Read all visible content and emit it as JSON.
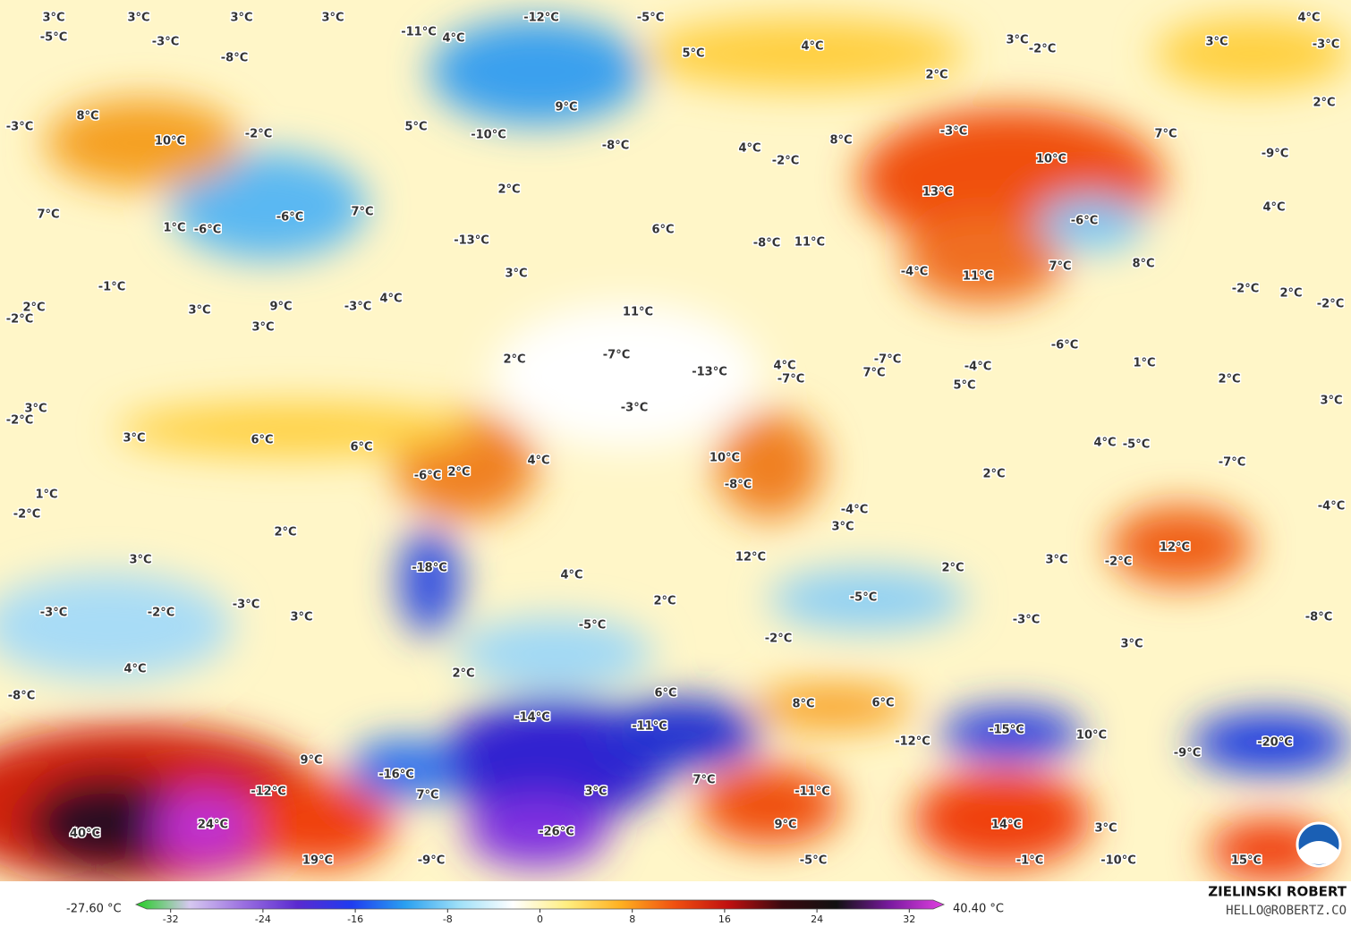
{
  "map": {
    "labels": [
      "3°C",
      "3°C",
      "3°C",
      "3°C",
      "-12°C",
      "-5°C",
      "4°C",
      "-5°C",
      "-3°C",
      "-11°C",
      "4°C",
      "3°C",
      "-2°C",
      "3°C",
      "-3°C",
      "-8°C",
      "5°C",
      "4°C",
      "2°C",
      "2°C",
      "8°C",
      "-3°C",
      "5°C",
      "9°C",
      "-10°C",
      "-8°C",
      "-2°C",
      "10°C",
      "4°C",
      "8°C",
      "-3°C",
      "7°C",
      "-9°C",
      "-2°C",
      "10°C",
      "2°C",
      "13°C",
      "7°C",
      "-6°C",
      "7°C",
      "-6°C",
      "4°C",
      "1°C",
      "-6°C",
      "6°C",
      "-13°C",
      "-8°C",
      "11°C",
      "-1°C",
      "3°C",
      "-4°C",
      "11°C",
      "7°C",
      "8°C",
      "-2°C",
      "2°C",
      "-2°C",
      "2°C",
      "-2°C",
      "3°C",
      "9°C",
      "-3°C",
      "4°C",
      "11°C",
      "3°C",
      "-6°C",
      "2°C",
      "-7°C",
      "-13°C",
      "4°C",
      "-7°C",
      "-7°C",
      "7°C",
      "1°C",
      "2°C",
      "-4°C",
      "5°C",
      "3°C",
      "3°C",
      "-2°C",
      "-3°C",
      "3°C",
      "6°C",
      "6°C",
      "4°C",
      "4°C",
      "-5°C",
      "-7°C",
      "2°C",
      "10°C",
      "-6°C",
      "2°C",
      "-8°C",
      "1°C",
      "-2°C",
      "-4°C",
      "3°C",
      "-4°C",
      "2°C",
      "12°C",
      "3°C",
      "-18°C",
      "12°C",
      "4°C",
      "2°C",
      "3°C",
      "-2°C",
      "-3°C",
      "-2°C",
      "-3°C",
      "3°C",
      "2°C",
      "-5°C",
      "-5°C",
      "-3°C",
      "-8°C",
      "-2°C",
      "3°C",
      "4°C",
      "2°C",
      "6°C",
      "-8°C",
      "8°C",
      "6°C",
      "-14°C",
      "-11°C",
      "-15°C",
      "10°C",
      "-12°C",
      "-20°C",
      "-9°C",
      "9°C",
      "-16°C",
      "7°C",
      "-12°C",
      "7°C",
      "3°C",
      "-11°C",
      "40°C",
      "24°C",
      "9°C",
      "14°C",
      "3°C",
      "-26°C",
      "19°C",
      "-9°C",
      "-5°C",
      "-1°C",
      "-10°C",
      "15°C"
    ]
  },
  "colorbar": {
    "min_label": "-27.60 °C",
    "max_label": "40.40 °C",
    "range": [
      -35,
      35
    ],
    "ticks": [
      -32,
      -24,
      -16,
      -8,
      0,
      8,
      16,
      24,
      32
    ],
    "colors": [
      "#22cc22",
      "#d6c8f0",
      "#9a6fe0",
      "#5a2ad0",
      "#1f3cf0",
      "#2aa0f0",
      "#9fe0f8",
      "#ffffff",
      "#ffee80",
      "#ffb020",
      "#f05010",
      "#c01010",
      "#3a0a10",
      "#111111",
      "#7a1aa0",
      "#e040e0"
    ]
  },
  "credit": {
    "name": "ZIELINSKI ROBERT",
    "contact": "HELLO@ROBERTZ.CO"
  }
}
